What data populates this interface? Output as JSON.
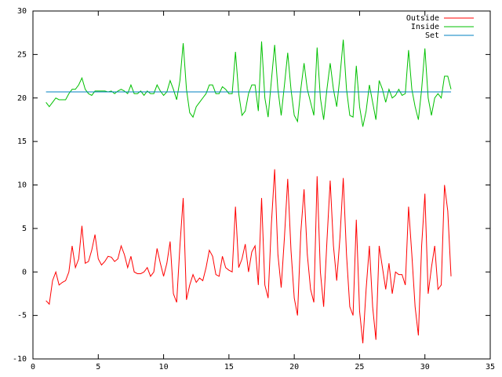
{
  "chart_data": {
    "type": "line",
    "x": [
      1,
      1.25,
      1.5,
      1.75,
      2,
      2.25,
      2.5,
      2.75,
      3,
      3.25,
      3.5,
      3.75,
      4,
      4.25,
      4.5,
      4.75,
      5,
      5.25,
      5.5,
      5.75,
      6,
      6.25,
      6.5,
      6.75,
      7,
      7.25,
      7.5,
      7.75,
      8,
      8.25,
      8.5,
      8.75,
      9,
      9.25,
      9.5,
      9.75,
      10,
      10.25,
      10.5,
      10.75,
      11,
      11.25,
      11.5,
      11.75,
      12,
      12.25,
      12.5,
      12.75,
      13,
      13.25,
      13.5,
      13.75,
      14,
      14.25,
      14.5,
      14.75,
      15,
      15.25,
      15.5,
      15.75,
      16,
      16.25,
      16.5,
      16.75,
      17,
      17.25,
      17.5,
      17.75,
      18,
      18.25,
      18.5,
      18.75,
      19,
      19.25,
      19.5,
      19.75,
      20,
      20.25,
      20.5,
      20.75,
      21,
      21.25,
      21.5,
      21.75,
      22,
      22.25,
      22.5,
      22.75,
      23,
      23.25,
      23.5,
      23.75,
      24,
      24.25,
      24.5,
      24.75,
      25,
      25.25,
      25.5,
      25.75,
      26,
      26.25,
      26.5,
      26.75,
      27,
      27.25,
      27.5,
      27.75,
      28,
      28.25,
      28.5,
      28.75,
      29,
      29.25,
      29.5,
      29.75,
      30,
      30.25,
      30.5,
      30.75,
      31,
      31.25,
      31.5,
      31.75,
      32
    ],
    "series": [
      {
        "name": "Outside",
        "color": "#ff0000",
        "values": [
          -3.3,
          -3.7,
          -1,
          0,
          -1.5,
          -1.2,
          -1,
          0,
          3,
          0.5,
          1.5,
          5.3,
          1,
          1.2,
          2.5,
          4.3,
          1.5,
          0.8,
          1.2,
          1.8,
          1.7,
          1.2,
          1.5,
          3,
          2,
          0.5,
          1.8,
          0,
          -0.2,
          -0.2,
          0,
          0.5,
          -0.5,
          0,
          2.7,
          1,
          -0.5,
          1,
          3.5,
          -2.5,
          -3.5,
          3,
          8.5,
          -3.2,
          -1.5,
          -0.3,
          -1.2,
          -0.7,
          -1,
          0.5,
          2.5,
          1.8,
          -0.3,
          -0.5,
          1.8,
          0.5,
          0.2,
          0,
          7.5,
          0.5,
          1.5,
          3.2,
          0,
          2.3,
          3,
          -1.5,
          8.5,
          -1.5,
          -3,
          5.5,
          11.8,
          2,
          -1.8,
          4,
          10.7,
          2.5,
          -3,
          -5,
          4.5,
          9.5,
          2,
          -2,
          -3.5,
          11,
          0,
          -4,
          3.5,
          10.5,
          3,
          -1,
          4,
          10.8,
          2,
          -4,
          -5,
          6,
          -4.5,
          -8.2,
          -2,
          3,
          -4,
          -7.8,
          3,
          0.5,
          -2,
          1,
          -2.5,
          0,
          -0.3,
          -0.3,
          -1.5,
          7.5,
          2,
          -4,
          -7.3,
          3,
          9,
          -2.5,
          0.5,
          3,
          -2,
          -1.5,
          10,
          7,
          -0.5
        ]
      },
      {
        "name": "Inside",
        "color": "#00c000",
        "values": [
          19.5,
          19,
          19.5,
          20,
          19.8,
          19.8,
          19.8,
          20.5,
          21,
          21,
          21.5,
          22.3,
          21,
          20.5,
          20.3,
          20.8,
          20.8,
          20.8,
          20.8,
          20.7,
          20.8,
          20.5,
          20.8,
          21,
          20.8,
          20.5,
          21.5,
          20.5,
          20.5,
          20.8,
          20.3,
          20.8,
          20.5,
          20.5,
          21.5,
          20.8,
          20.3,
          20.7,
          22,
          21,
          19.8,
          22,
          26.3,
          21,
          18.3,
          17.8,
          19,
          19.5,
          20,
          20.5,
          21.5,
          21.5,
          20.5,
          20.5,
          21.3,
          21,
          20.5,
          20.5,
          25.3,
          20.5,
          18,
          18.5,
          20.5,
          21.5,
          21.5,
          18.5,
          26.5,
          20,
          17.8,
          22,
          26.1,
          21,
          18,
          21.5,
          25.2,
          21,
          18,
          17.3,
          21,
          24,
          21,
          19.5,
          18,
          25.8,
          20,
          17.5,
          21,
          24,
          21,
          19,
          22.5,
          26.7,
          21,
          18,
          17.8,
          23.7,
          19,
          16.7,
          18.5,
          21.5,
          19.5,
          17.5,
          22,
          21,
          19.5,
          21,
          20,
          20.3,
          21,
          20.3,
          20.5,
          25.5,
          21,
          19,
          17.5,
          21,
          25.7,
          20,
          18,
          20,
          20.5,
          20,
          22.5,
          22.5,
          21
        ]
      },
      {
        "name": "Set",
        "color": "#0080c0",
        "x": [
          1,
          32
        ],
        "values": [
          20.7,
          20.7
        ]
      }
    ],
    "xlim": [
      0,
      35
    ],
    "xticks": [
      0,
      5,
      10,
      15,
      20,
      25,
      30,
      35
    ],
    "ylim": [
      -10,
      30
    ],
    "yticks": [
      -10,
      -5,
      0,
      5,
      10,
      15,
      20,
      25,
      30
    ],
    "grid": false,
    "legend": "top-right"
  }
}
